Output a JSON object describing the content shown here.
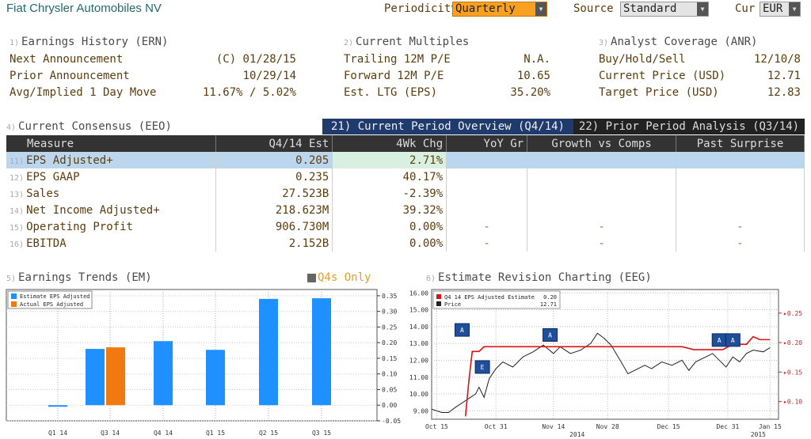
{
  "header": {
    "title": "Fiat Chrysler Automobiles NV",
    "periodicity_label": "Periodicity",
    "periodicity_value": "Quarterly",
    "source_label": "Source",
    "source_value": "Standard",
    "cur_label": "Cur",
    "cur_value": "EUR"
  },
  "sections": {
    "ern": {
      "num": "1)",
      "title": "Earnings History (ERN)"
    },
    "multiples": {
      "num": "2)",
      "title": "Current Multiples"
    },
    "anr": {
      "num": "3)",
      "title": "Analyst Coverage (ANR)"
    },
    "eeo": {
      "num": "4)",
      "title": "Current Consensus (EEO)"
    },
    "em": {
      "num": "5)",
      "title": "Earnings Trends (EM)",
      "q4_only": "Q4s Only"
    },
    "eeg": {
      "num": "6)",
      "title": "Estimate Revision Charting (EEG)"
    }
  },
  "earnings_history": [
    {
      "label": "Next Announcement",
      "value": "(C)  01/28/15"
    },
    {
      "label": "Prior Announcement",
      "value": "10/29/14"
    },
    {
      "label": "Avg/Implied 1 Day Move",
      "value": "11.67% / 5.02%"
    }
  ],
  "multiples": [
    {
      "label": "Trailing 12M P/E",
      "value": "N.A."
    },
    {
      "label": "Forward 12M P/E",
      "value": "10.65"
    },
    {
      "label": "Est. LTG (EPS)",
      "value": "35.20%"
    }
  ],
  "analyst": [
    {
      "label": "Buy/Hold/Sell",
      "value": "12/10/8"
    },
    {
      "label": "Current Price (USD)",
      "value": "12.71"
    },
    {
      "label": "Target Price (USD)",
      "value": "12.83"
    }
  ],
  "tabs": {
    "current": "21) Current Period Overview (Q4/14)",
    "prior": "22) Prior Period Analysis (Q3/14)"
  },
  "table": {
    "headers": [
      "Measure",
      "Q4/14 Est",
      "4Wk Chg",
      "YoY Gr",
      "Growth vs Comps",
      "Past Surprise"
    ],
    "rows": [
      {
        "num": "11)",
        "measure": "EPS Adjusted+",
        "est": "0.205",
        "chg": "2.71%",
        "yoy": "",
        "comps": "",
        "surprise": ""
      },
      {
        "num": "12)",
        "measure": "EPS GAAP",
        "est": "0.235",
        "chg": "40.17%",
        "yoy": "",
        "comps": "",
        "surprise": ""
      },
      {
        "num": "13)",
        "measure": "Sales",
        "est": "27.523B",
        "chg": "-2.39%",
        "yoy": "",
        "comps": "",
        "surprise": ""
      },
      {
        "num": "14)",
        "measure": "Net Income Adjusted+",
        "est": "218.623M",
        "chg": "39.32%",
        "yoy": "",
        "comps": "",
        "surprise": ""
      },
      {
        "num": "15)",
        "measure": "Operating Profit",
        "est": "906.730M",
        "chg": "0.00%",
        "yoy": "-",
        "comps": "-",
        "surprise": "-"
      },
      {
        "num": "16)",
        "measure": "EBITDA",
        "est": "2.152B",
        "chg": "0.00%",
        "yoy": "-",
        "comps": "-",
        "surprise": "-"
      }
    ]
  },
  "colors": {
    "estimate": "#1e90ff",
    "actual": "#f07a10",
    "tab_active": "#1f3b6e",
    "revision_line": "#dd1111",
    "price_line": "#222222"
  },
  "chart_data": [
    {
      "type": "bar",
      "categories": [
        "Q1 14",
        "Q3 14",
        "Q4 14",
        "Q1 15",
        "Q2 15",
        "Q3 15"
      ],
      "series": [
        {
          "name": "Estimate EPS Adjusted",
          "values": [
            -0.005,
            0.18,
            0.205,
            0.177,
            0.34,
            0.342
          ]
        },
        {
          "name": "Actual EPS Adjusted",
          "values": [
            null,
            0.185,
            null,
            null,
            null,
            null
          ]
        }
      ],
      "yticks": [
        "-0.05",
        "0.00",
        "0.05",
        "0.10",
        "0.15",
        "0.20",
        "0.25",
        "0.30",
        "0.35"
      ],
      "ylim": [
        -0.05,
        0.37
      ],
      "legend": "top-left",
      "grid": true
    },
    {
      "type": "line",
      "x_ticks": [
        "Oct 15",
        "Oct 31",
        "Nov 14",
        "Nov 28",
        "Dec 15",
        "Dec 31",
        "Jan 15"
      ],
      "x_year_labels": [
        "2014",
        "2015"
      ],
      "y_left_ticks": [
        "9.00",
        "10.00",
        "11.00",
        "12.00",
        "13.00",
        "14.00",
        "15.00",
        "16.00"
      ],
      "y_right_ticks": [
        "0.10",
        "0.15",
        "0.20",
        "0.25"
      ],
      "series": [
        {
          "name": "Q4 14 EPS Adjusted Estimate",
          "legend_value": "0.20",
          "points": [
            [
              20,
              0.075
            ],
            [
              22,
              0.135
            ],
            [
              24,
              0.185
            ],
            [
              28,
              0.185
            ],
            [
              31,
              0.193
            ],
            [
              50,
              0.193
            ],
            [
              80,
              0.193
            ],
            [
              100,
              0.193
            ],
            [
              125,
              0.193
            ],
            [
              148,
              0.193
            ],
            [
              155,
              0.188
            ],
            [
              172,
              0.188
            ],
            [
              178,
              0.197
            ],
            [
              186,
              0.197
            ],
            [
              190,
              0.21
            ],
            [
              194,
              0.205
            ],
            [
              200,
              0.205
            ]
          ]
        },
        {
          "name": "Price",
          "legend_value": "12.71",
          "points": [
            [
              0,
              9.1
            ],
            [
              6,
              8.9
            ],
            [
              10,
              8.9
            ],
            [
              14,
              9.2
            ],
            [
              20,
              9.6
            ],
            [
              26,
              10.0
            ],
            [
              28,
              10.4
            ],
            [
              31,
              9.8
            ],
            [
              34,
              10.9
            ],
            [
              38,
              11.5
            ],
            [
              42,
              11.9
            ],
            [
              48,
              11.6
            ],
            [
              54,
              12.2
            ],
            [
              60,
              12.5
            ],
            [
              66,
              12.9
            ],
            [
              72,
              12.4
            ],
            [
              76,
              12.8
            ],
            [
              82,
              12.4
            ],
            [
              88,
              12.6
            ],
            [
              94,
              13.0
            ],
            [
              98,
              13.6
            ],
            [
              102,
              13.3
            ],
            [
              106,
              12.9
            ],
            [
              112,
              11.9
            ],
            [
              116,
              11.2
            ],
            [
              120,
              11.4
            ],
            [
              126,
              11.7
            ],
            [
              130,
              11.5
            ],
            [
              136,
              11.9
            ],
            [
              142,
              11.7
            ],
            [
              148,
              12.0
            ],
            [
              152,
              11.4
            ],
            [
              156,
              11.9
            ],
            [
              160,
              12.1
            ],
            [
              166,
              12.4
            ],
            [
              170,
              12.0
            ],
            [
              174,
              11.6
            ],
            [
              178,
              12.2
            ],
            [
              182,
              11.9
            ],
            [
              186,
              12.4
            ],
            [
              190,
              12.6
            ],
            [
              196,
              12.5
            ],
            [
              200,
              12.75
            ]
          ]
        }
      ],
      "markers": [
        {
          "label": "A",
          "x": 18,
          "y": 13.8
        },
        {
          "label": "E",
          "x": 30,
          "y": 11.6
        },
        {
          "label": "A",
          "x": 70,
          "y": 13.5
        },
        {
          "label": "A",
          "x": 170,
          "y": 13.2
        },
        {
          "label": "A",
          "x": 178,
          "y": 13.2
        }
      ],
      "ylim": [
        8.5,
        16.2
      ],
      "y2lim": [
        0.07,
        0.29
      ],
      "xlim": [
        0,
        205
      ]
    }
  ]
}
